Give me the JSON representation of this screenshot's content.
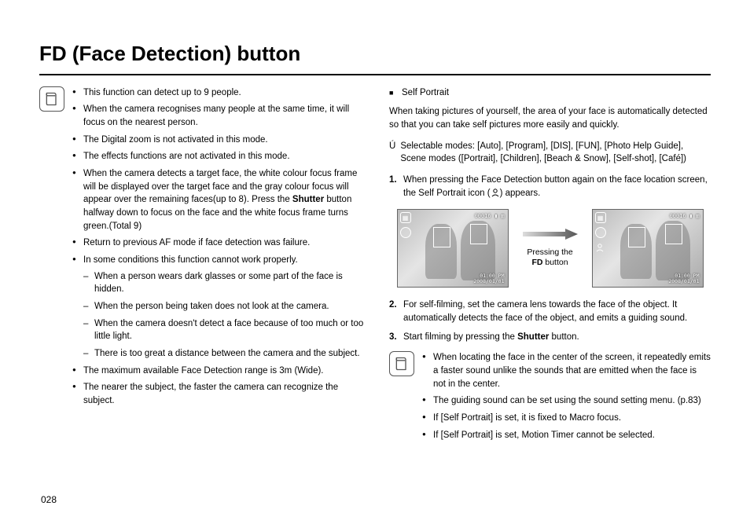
{
  "page_number": "028",
  "title": "FD (Face Detection) button",
  "left_notes": {
    "items": [
      {
        "text": "This function can detect up to 9 people."
      },
      {
        "text": "When the camera recognises many people at the same time, it will focus on the nearest person."
      },
      {
        "text": "The Digital zoom is not activated in this mode."
      },
      {
        "text": "The effects functions are not activated in this mode."
      },
      {
        "html": "When the camera detects a target face, the white colour focus frame will be displayed over the target face and the gray colour focus will appear over the remaining faces(up to 8). Press the <b>Shutter</b> button halfway down to focus on the face and the white focus frame turns green.(Total 9)"
      },
      {
        "text": "Return to previous AF mode if face detection was failure."
      },
      {
        "text": "In some conditions this function cannot work properly.",
        "subs": [
          "When a person wears dark glasses or some part of the face is hidden.",
          "When the person being taken does not look at the camera.",
          "When the camera doesn't detect a face because of too much or too little light.",
          "There is too great a distance between the camera and the subject."
        ]
      },
      {
        "text": "The maximum available Face Detection range is 3m (Wide)."
      },
      {
        "text": "The nearer the subject, the faster the camera can recognize the subject."
      }
    ]
  },
  "right": {
    "heading": "Self Portrait",
    "intro": "When taking pictures of yourself, the area of your face is automatically detected so that you can take self pictures more easily and quickly.",
    "modes_label": "Selectable modes: ",
    "modes_text": "[Auto], [Program], [DIS], [FUN], [Photo Help Guide], Scene modes ([Portrait], [Children], [Beach & Snow], [Self-shot], [Café])",
    "steps": [
      {
        "num": "1.",
        "html": "When pressing the Face Detection button again on the face location screen, the Self Portrait icon (<span class='sp-icon-inline'><svg viewBox='0 0 12 12'><circle cx='6' cy='4' r='2.2' fill='none' stroke='#000' stroke-width='1'/><path d='M2 11 Q6 7 10 11' fill='none' stroke='#000' stroke-width='1'/></svg></span>) appears."
      },
      {
        "num": "2.",
        "text": "For self-filming, set the camera lens towards the face of the object. It automatically detects the face of the object, and emits a guiding sound."
      },
      {
        "num": "3.",
        "html": "Start filming by pressing the <b>Shutter</b> button."
      }
    ],
    "arrow_label_1": "Pressing the",
    "arrow_label_2": "FD",
    "arrow_label_3": " button",
    "cam_overlay_counter": "00016",
    "cam_time_top": "01:00 PM",
    "cam_time_bottom": "2008/01/01",
    "bottom_notes": [
      "When locating the face in the center of the screen, it repeatedly emits a faster sound unlike the sounds that are emitted when the face is not in the center.",
      "The guiding sound can be set using the sound setting menu. (p.83)",
      "If [Self Portrait] is set, it is fixed to Macro focus.",
      "If [Self Portrait] is set, Motion Timer cannot be selected."
    ]
  }
}
